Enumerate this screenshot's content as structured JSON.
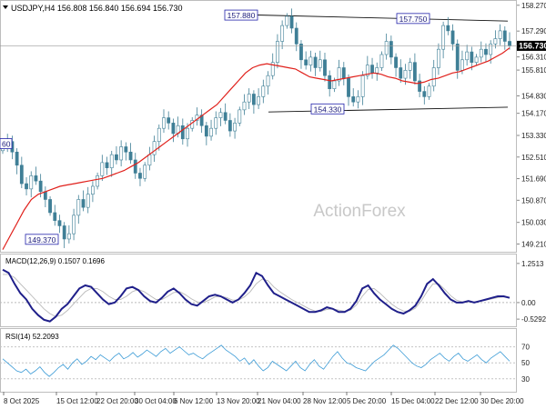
{
  "header": {
    "symbol_line": "USDJPY,H4  156.808 156.840 156.694 156.730"
  },
  "watermark": "ActionForex",
  "colors": {
    "candle": "#3f7f96",
    "ma": "#e0201b",
    "macd": "#1f1f8a",
    "signal": "#b9b9b9",
    "rsi": "#3b9bd6",
    "label_border": "#2222aa",
    "last_price_bg": "#000000"
  },
  "price_labels": {
    "last": "156.730",
    "left_cut": "60",
    "annotations": [
      {
        "text": "157.880",
        "date": "20 Nov 2025"
      },
      {
        "text": "157.750",
        "date": "19 Dec 2025"
      },
      {
        "text": "154.330",
        "date": "1 Dec 2025"
      },
      {
        "text": "149.370",
        "date": "10 Oct 2025"
      }
    ]
  },
  "chart_data": [
    {
      "type": "candlestick",
      "title": "USDJPY,H4",
      "ohlc_readout": {
        "open": 156.808,
        "high": 156.84,
        "low": 156.694,
        "close": 156.73
      },
      "y_ticks": [
        "158.270",
        "157.290",
        "156.310",
        "155.810",
        "154.830",
        "154.170",
        "153.330",
        "152.510",
        "151.690",
        "150.870",
        "150.030",
        "149.210"
      ],
      "ylim": [
        148.95,
        158.4
      ],
      "x_ticks": [
        "8 Oct 2025",
        "15 Oct 12:00",
        "22 Oct 20:00",
        "30 Oct 04:00",
        "6 Nov 12:00",
        "13 Nov 20:00",
        "21 Nov 04:00",
        "28 Nov 12:00",
        "5 Dec 20:00",
        "15 Dec 04:00",
        "22 Dec 12:00",
        "30 Dec 20:00"
      ],
      "series": [
        {
          "kind": "close",
          "values": [
            152.9,
            153.1,
            152.7,
            152.2,
            151.5,
            151.3,
            151.8,
            151.6,
            151.2,
            150.9,
            150.4,
            150.1,
            149.9,
            149.4,
            149.6,
            150.3,
            150.9,
            150.6,
            151.1,
            151.4,
            151.8,
            152.3,
            152.1,
            152.6,
            152.4,
            152.9,
            152.7,
            152.4,
            151.9,
            151.7,
            152.2,
            152.6,
            153.1,
            153.6,
            154.0,
            153.8,
            153.4,
            153.7,
            153.2,
            153.6,
            153.9,
            154.1,
            153.7,
            153.3,
            153.6,
            154.0,
            154.2,
            153.9,
            153.5,
            153.8,
            154.3,
            154.6,
            154.9,
            154.5,
            154.8,
            155.2,
            155.6,
            156.1,
            156.9,
            157.5,
            157.85,
            157.4,
            156.8,
            156.2,
            156.0,
            156.3,
            155.9,
            156.2,
            155.6,
            155.1,
            155.4,
            155.9,
            155.5,
            154.8,
            154.6,
            154.8,
            155.6,
            156.0,
            155.7,
            155.9,
            156.4,
            156.9,
            156.3,
            155.9,
            155.5,
            155.8,
            156.1,
            155.4,
            155.0,
            154.8,
            155.2,
            155.9,
            156.6,
            157.5,
            157.3,
            156.8,
            155.8,
            156.2,
            156.5,
            156.1,
            156.3,
            156.6,
            156.4,
            156.8,
            157.0,
            157.3,
            156.9,
            156.73
          ]
        },
        {
          "kind": "moving_average",
          "values": [
            149.0,
            149.5,
            150.0,
            150.5,
            150.9,
            151.1,
            151.2,
            151.3,
            151.4,
            151.45,
            151.5,
            151.55,
            151.6,
            151.65,
            151.7,
            151.8,
            151.9,
            152.0,
            152.15,
            152.3,
            152.5,
            152.7,
            152.9,
            153.1,
            153.3,
            153.5,
            153.7,
            153.9,
            154.1,
            154.3,
            154.5,
            154.8,
            155.1,
            155.4,
            155.7,
            155.9,
            156.0,
            156.05,
            156.0,
            155.95,
            155.9,
            155.85,
            155.7,
            155.55,
            155.5,
            155.45,
            155.4,
            155.45,
            155.5,
            155.55,
            155.6,
            155.65,
            155.7,
            155.65,
            155.55,
            155.5,
            155.4,
            155.35,
            155.3,
            155.35,
            155.45,
            155.5,
            155.6,
            155.7,
            155.75,
            155.85,
            155.95,
            156.05,
            156.15,
            156.3,
            156.45,
            156.65
          ]
        }
      ]
    },
    {
      "type": "line",
      "title": "MACD(12,26,9) 0.1507 0.1696",
      "y_ticks": [
        "1.2513",
        "0.00",
        "-0.5292"
      ],
      "ylim": [
        -0.7,
        1.45
      ],
      "series": [
        {
          "name": "MACD",
          "values": [
            1.05,
            0.95,
            0.6,
            0.3,
            0.1,
            -0.2,
            -0.4,
            -0.55,
            -0.6,
            -0.45,
            -0.2,
            -0.05,
            0.2,
            0.45,
            0.55,
            0.5,
            0.3,
            0.1,
            -0.05,
            0.0,
            0.2,
            0.45,
            0.5,
            0.4,
            0.2,
            0.05,
            0.0,
            0.15,
            0.35,
            0.45,
            0.3,
            0.1,
            -0.05,
            -0.1,
            0.05,
            0.2,
            0.25,
            0.2,
            0.1,
            0.0,
            0.1,
            0.3,
            0.55,
            0.95,
            0.85,
            0.55,
            0.3,
            0.2,
            0.1,
            0.0,
            -0.1,
            -0.2,
            -0.3,
            -0.3,
            -0.25,
            -0.15,
            -0.2,
            -0.3,
            -0.3,
            -0.2,
            0.05,
            0.45,
            0.55,
            0.3,
            0.1,
            -0.05,
            -0.2,
            -0.3,
            -0.35,
            -0.25,
            -0.1,
            0.2,
            0.6,
            0.75,
            0.55,
            0.3,
            0.1,
            0.0,
            0.0,
            0.05,
            0.0,
            0.05,
            0.1,
            0.15,
            0.2,
            0.2,
            0.15
          ]
        },
        {
          "name": "Signal",
          "values": [
            0.9,
            0.9,
            0.8,
            0.6,
            0.4,
            0.2,
            0.0,
            -0.2,
            -0.35,
            -0.45,
            -0.4,
            -0.25,
            -0.05,
            0.15,
            0.35,
            0.45,
            0.45,
            0.35,
            0.2,
            0.1,
            0.1,
            0.2,
            0.35,
            0.42,
            0.35,
            0.22,
            0.1,
            0.1,
            0.2,
            0.32,
            0.35,
            0.25,
            0.12,
            0.02,
            0.0,
            0.08,
            0.18,
            0.2,
            0.16,
            0.08,
            0.08,
            0.18,
            0.35,
            0.6,
            0.75,
            0.7,
            0.5,
            0.35,
            0.22,
            0.1,
            0.0,
            -0.1,
            -0.2,
            -0.27,
            -0.28,
            -0.22,
            -0.2,
            -0.24,
            -0.28,
            -0.24,
            -0.08,
            0.2,
            0.42,
            0.45,
            0.3,
            0.12,
            -0.05,
            -0.18,
            -0.27,
            -0.28,
            -0.18,
            0.05,
            0.35,
            0.6,
            0.6,
            0.42,
            0.22,
            0.08,
            0.02,
            0.02,
            0.02,
            0.04,
            0.08,
            0.12,
            0.16,
            0.18,
            0.17
          ]
        }
      ]
    },
    {
      "type": "line",
      "title": "RSI(14) 52.2093",
      "y_ticks": [
        "70",
        "50",
        "30"
      ],
      "ylim": [
        15,
        90
      ],
      "series": [
        {
          "name": "RSI",
          "values": [
            55,
            50,
            45,
            40,
            38,
            42,
            36,
            40,
            45,
            38,
            33,
            38,
            44,
            48,
            42,
            50,
            55,
            48,
            52,
            58,
            54,
            60,
            56,
            52,
            58,
            62,
            55,
            58,
            63,
            57,
            61,
            66,
            62,
            58,
            64,
            68,
            62,
            66,
            70,
            65,
            60,
            62,
            58,
            55,
            60,
            64,
            68,
            72,
            66,
            62,
            58,
            52,
            56,
            48,
            54,
            46,
            40,
            44,
            52,
            48,
            44,
            40,
            46,
            52,
            44,
            40,
            48,
            54,
            46,
            42,
            50,
            58,
            64,
            56,
            50,
            48,
            44,
            42,
            40,
            46,
            52,
            56,
            60,
            66,
            72,
            68,
            62,
            56,
            50,
            46,
            44,
            48,
            54,
            58,
            62,
            56,
            52,
            58,
            62,
            55,
            52,
            56,
            60,
            54,
            50,
            56,
            60,
            64,
            58,
            52
          ]
        }
      ]
    }
  ]
}
